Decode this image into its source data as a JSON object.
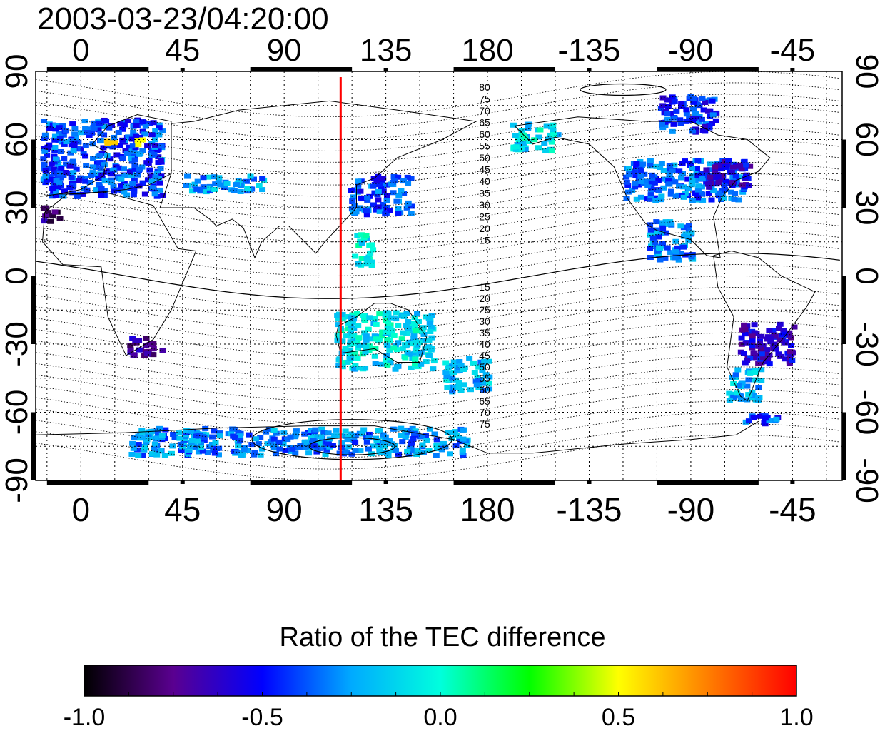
{
  "chart_data": {
    "type": "heatmap",
    "title": "2003-03-23/04:20:00",
    "colorbar_label": "Ratio of the TEC difference",
    "colorbar_range": [
      -1.0,
      1.0
    ],
    "colorbar_ticks": [
      "-1.0",
      "-0.5",
      "0.0",
      "0.5",
      "1.0"
    ],
    "colormap": [
      "#000000",
      "#5a0090",
      "#0000ff",
      "#00aaff",
      "#00ffdd",
      "#00ff00",
      "#ffff00",
      "#ff7f00",
      "#ff0000"
    ],
    "x_ticks": [
      {
        "lon": 0,
        "label": "0"
      },
      {
        "lon": 45,
        "label": "45"
      },
      {
        "lon": 90,
        "label": "90"
      },
      {
        "lon": 135,
        "label": "135"
      },
      {
        "lon": 180,
        "label": "180"
      },
      {
        "lon": 225,
        "label": "-135"
      },
      {
        "lon": 270,
        "label": "-90"
      },
      {
        "lon": 315,
        "label": "-45"
      }
    ],
    "y_ticks": [
      {
        "lat": 90,
        "label": "90"
      },
      {
        "lat": 60,
        "label": "60"
      },
      {
        "lat": 30,
        "label": "30"
      },
      {
        "lat": 0,
        "label": "0"
      },
      {
        "lat": -30,
        "label": "-30"
      },
      {
        "lat": -60,
        "label": "-60"
      },
      {
        "lat": -90,
        "label": "-90"
      }
    ],
    "xlim": [
      -20,
      337
    ],
    "ylim": [
      -90,
      90
    ],
    "meridian_lon": 115,
    "contour_labels_north": [
      "80",
      "75",
      "70",
      "65",
      "60",
      "55",
      "50",
      "45",
      "40",
      "35",
      "30",
      "25",
      "20",
      "15"
    ],
    "contour_labels_south": [
      "15",
      "20",
      "25",
      "30",
      "35",
      "40",
      "45",
      "50",
      "55",
      "60",
      "65",
      "70",
      "75"
    ],
    "grid": true,
    "data_regions": [
      {
        "lon": [
          -18,
          35
        ],
        "lat": [
          36,
          70
        ],
        "v": -0.4
      },
      {
        "lon": 25,
        "lat": 60,
        "v": 0.5
      },
      {
        "lon": 12,
        "lat": 60,
        "v": 0.6
      },
      {
        "lon": [
          -18,
          -10
        ],
        "lat": [
          25,
          32
        ],
        "v": -0.8
      },
      {
        "lon": [
          45,
          80
        ],
        "lat": [
          38,
          45
        ],
        "v": -0.25
      },
      {
        "lon": [
          118,
          145
        ],
        "lat": [
          28,
          45
        ],
        "v": -0.4
      },
      {
        "lon": [
          120,
          128
        ],
        "lat": [
          5,
          20
        ],
        "v": -0.1
      },
      {
        "lon": [
          20,
          35
        ],
        "lat": [
          -34,
          -26
        ],
        "v": -0.7
      },
      {
        "lon": [
          112,
          155
        ],
        "lat": [
          -40,
          -15
        ],
        "v": -0.1
      },
      {
        "lon": [
          160,
          180
        ],
        "lat": [
          -50,
          -35
        ],
        "v": -0.2
      },
      {
        "lon": [
          20,
          170
        ],
        "lat": [
          -78,
          -66
        ],
        "v": -0.3
      },
      {
        "lon": [
          190,
          210
        ],
        "lat": [
          56,
          68
        ],
        "v": -0.1
      },
      {
        "lon": [
          240,
          295
        ],
        "lat": [
          34,
          52
        ],
        "v": -0.35
      },
      {
        "lon": [
          275,
          295
        ],
        "lat": [
          40,
          52
        ],
        "v": -0.6
      },
      {
        "lon": [
          255,
          280
        ],
        "lat": [
          64,
          80
        ],
        "v": -0.45
      },
      {
        "lon": [
          250,
          270
        ],
        "lat": [
          8,
          25
        ],
        "v": -0.3
      },
      {
        "lon": [
          290,
          315
        ],
        "lat": [
          -38,
          -20
        ],
        "v": -0.6
      },
      {
        "lon": [
          285,
          300
        ],
        "lat": [
          -55,
          -40
        ],
        "v": -0.2
      },
      {
        "lon": [
          292,
          308
        ],
        "lat": [
          -65,
          -60
        ],
        "v": -0.4
      }
    ]
  }
}
